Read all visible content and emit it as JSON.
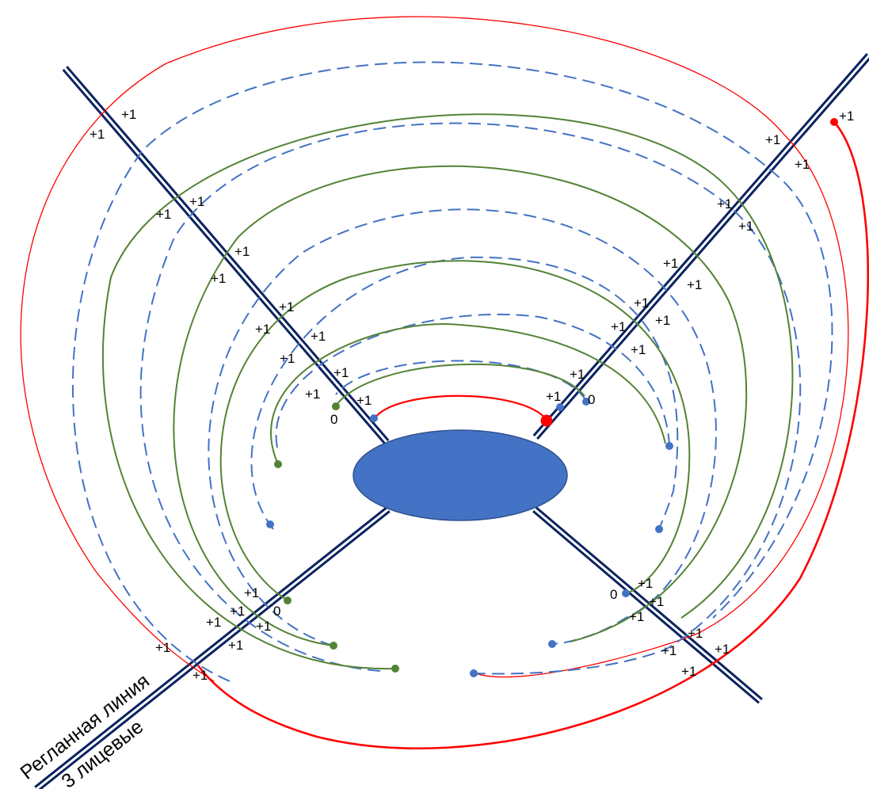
{
  "colors": {
    "raglan": "#0b2260",
    "blue": "#4472c4",
    "green": "#548235",
    "red": "#ff0000",
    "oval": "#4472c4",
    "oval_stroke": "#2f528f"
  },
  "captions": {
    "line1": "Регланная линия",
    "line2": "3 лицевые"
  },
  "labels": {
    "plus_one": "+1",
    "zero": "0"
  }
}
